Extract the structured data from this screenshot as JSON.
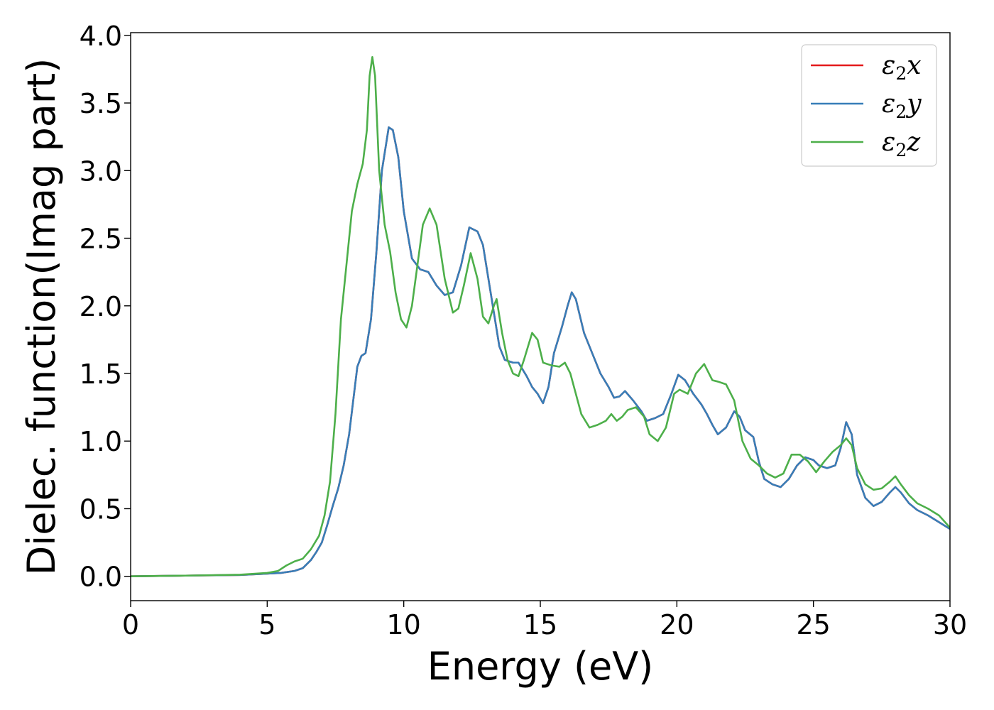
{
  "chart_data": {
    "type": "line",
    "title": "",
    "xlabel": "Energy (eV)",
    "ylabel": "Dielec. function(Imag part)",
    "xlim": [
      0,
      30
    ],
    "ylim": [
      -0.18,
      4.02
    ],
    "xticks": [
      0,
      5,
      10,
      15,
      20,
      25,
      30
    ],
    "xtick_labels": [
      "0",
      "5",
      "10",
      "15",
      "20",
      "25",
      "30"
    ],
    "yticks": [
      0.0,
      0.5,
      1.0,
      1.5,
      2.0,
      2.5,
      3.0,
      3.5,
      4.0
    ],
    "ytick_labels": [
      "0.0",
      "0.5",
      "1.0",
      "1.5",
      "2.0",
      "2.5",
      "3.0",
      "3.5",
      "4.0"
    ],
    "grid": false,
    "legend_position": "top-right",
    "colors": {
      "x": "#e41a1c",
      "y": "#377eb8",
      "z": "#4daf4a"
    },
    "series": [
      {
        "name": "ε2x",
        "legend_base": "ε",
        "legend_sub": "2",
        "legend_var": "x",
        "color": "#e41a1c",
        "points": [
          [
            0,
            0.0
          ],
          [
            2,
            0.005
          ],
          [
            4,
            0.01
          ],
          [
            5,
            0.02
          ],
          [
            5.5,
            0.025
          ],
          [
            6,
            0.04
          ],
          [
            6.3,
            0.06
          ],
          [
            6.6,
            0.12
          ],
          [
            6.8,
            0.18
          ],
          [
            7.0,
            0.25
          ],
          [
            7.2,
            0.38
          ],
          [
            7.4,
            0.52
          ],
          [
            7.6,
            0.65
          ],
          [
            7.8,
            0.82
          ],
          [
            8.0,
            1.05
          ],
          [
            8.15,
            1.3
          ],
          [
            8.3,
            1.55
          ],
          [
            8.45,
            1.63
          ],
          [
            8.6,
            1.65
          ],
          [
            8.8,
            1.9
          ],
          [
            9.0,
            2.4
          ],
          [
            9.2,
            3.0
          ],
          [
            9.45,
            3.32
          ],
          [
            9.6,
            3.3
          ],
          [
            9.8,
            3.1
          ],
          [
            10.0,
            2.7
          ],
          [
            10.3,
            2.35
          ],
          [
            10.6,
            2.27
          ],
          [
            10.9,
            2.25
          ],
          [
            11.2,
            2.15
          ],
          [
            11.5,
            2.08
          ],
          [
            11.8,
            2.1
          ],
          [
            12.1,
            2.3
          ],
          [
            12.4,
            2.58
          ],
          [
            12.7,
            2.55
          ],
          [
            12.9,
            2.45
          ],
          [
            13.1,
            2.2
          ],
          [
            13.3,
            1.95
          ],
          [
            13.5,
            1.7
          ],
          [
            13.7,
            1.6
          ],
          [
            14.0,
            1.58
          ],
          [
            14.2,
            1.58
          ],
          [
            14.5,
            1.48
          ],
          [
            14.7,
            1.4
          ],
          [
            14.9,
            1.35
          ],
          [
            15.1,
            1.28
          ],
          [
            15.3,
            1.4
          ],
          [
            15.5,
            1.65
          ],
          [
            15.8,
            1.85
          ],
          [
            16.0,
            2.0
          ],
          [
            16.15,
            2.1
          ],
          [
            16.3,
            2.05
          ],
          [
            16.6,
            1.8
          ],
          [
            16.9,
            1.65
          ],
          [
            17.2,
            1.5
          ],
          [
            17.5,
            1.4
          ],
          [
            17.7,
            1.32
          ],
          [
            17.9,
            1.33
          ],
          [
            18.1,
            1.37
          ],
          [
            18.4,
            1.3
          ],
          [
            18.7,
            1.22
          ],
          [
            18.9,
            1.15
          ],
          [
            19.2,
            1.17
          ],
          [
            19.5,
            1.2
          ],
          [
            19.8,
            1.35
          ],
          [
            20.05,
            1.49
          ],
          [
            20.3,
            1.45
          ],
          [
            20.6,
            1.35
          ],
          [
            20.9,
            1.27
          ],
          [
            21.1,
            1.2
          ],
          [
            21.3,
            1.12
          ],
          [
            21.5,
            1.05
          ],
          [
            21.8,
            1.1
          ],
          [
            22.1,
            1.22
          ],
          [
            22.3,
            1.18
          ],
          [
            22.5,
            1.08
          ],
          [
            22.8,
            1.03
          ],
          [
            23.0,
            0.85
          ],
          [
            23.2,
            0.72
          ],
          [
            23.5,
            0.68
          ],
          [
            23.8,
            0.66
          ],
          [
            24.1,
            0.72
          ],
          [
            24.4,
            0.82
          ],
          [
            24.7,
            0.88
          ],
          [
            25.0,
            0.86
          ],
          [
            25.2,
            0.82
          ],
          [
            25.5,
            0.8
          ],
          [
            25.8,
            0.82
          ],
          [
            26.0,
            0.95
          ],
          [
            26.2,
            1.14
          ],
          [
            26.4,
            1.05
          ],
          [
            26.6,
            0.75
          ],
          [
            26.9,
            0.58
          ],
          [
            27.2,
            0.52
          ],
          [
            27.5,
            0.55
          ],
          [
            27.8,
            0.62
          ],
          [
            28.0,
            0.66
          ],
          [
            28.2,
            0.62
          ],
          [
            28.5,
            0.54
          ],
          [
            28.8,
            0.49
          ],
          [
            29.2,
            0.45
          ],
          [
            29.6,
            0.4
          ],
          [
            30.0,
            0.35
          ]
        ]
      },
      {
        "name": "ε2y",
        "legend_base": "ε",
        "legend_sub": "2",
        "legend_var": "y",
        "color": "#377eb8",
        "points": [
          [
            0,
            0.0
          ],
          [
            2,
            0.005
          ],
          [
            4,
            0.01
          ],
          [
            5,
            0.02
          ],
          [
            5.5,
            0.025
          ],
          [
            6,
            0.04
          ],
          [
            6.3,
            0.06
          ],
          [
            6.6,
            0.12
          ],
          [
            6.8,
            0.18
          ],
          [
            7.0,
            0.25
          ],
          [
            7.2,
            0.38
          ],
          [
            7.4,
            0.52
          ],
          [
            7.6,
            0.65
          ],
          [
            7.8,
            0.82
          ],
          [
            8.0,
            1.05
          ],
          [
            8.15,
            1.3
          ],
          [
            8.3,
            1.55
          ],
          [
            8.45,
            1.63
          ],
          [
            8.6,
            1.65
          ],
          [
            8.8,
            1.9
          ],
          [
            9.0,
            2.4
          ],
          [
            9.2,
            3.0
          ],
          [
            9.45,
            3.32
          ],
          [
            9.6,
            3.3
          ],
          [
            9.8,
            3.1
          ],
          [
            10.0,
            2.7
          ],
          [
            10.3,
            2.35
          ],
          [
            10.6,
            2.27
          ],
          [
            10.9,
            2.25
          ],
          [
            11.2,
            2.15
          ],
          [
            11.5,
            2.08
          ],
          [
            11.8,
            2.1
          ],
          [
            12.1,
            2.3
          ],
          [
            12.4,
            2.58
          ],
          [
            12.7,
            2.55
          ],
          [
            12.9,
            2.45
          ],
          [
            13.1,
            2.2
          ],
          [
            13.3,
            1.95
          ],
          [
            13.5,
            1.7
          ],
          [
            13.7,
            1.6
          ],
          [
            14.0,
            1.58
          ],
          [
            14.2,
            1.58
          ],
          [
            14.5,
            1.48
          ],
          [
            14.7,
            1.4
          ],
          [
            14.9,
            1.35
          ],
          [
            15.1,
            1.28
          ],
          [
            15.3,
            1.4
          ],
          [
            15.5,
            1.65
          ],
          [
            15.8,
            1.85
          ],
          [
            16.0,
            2.0
          ],
          [
            16.15,
            2.1
          ],
          [
            16.3,
            2.05
          ],
          [
            16.6,
            1.8
          ],
          [
            16.9,
            1.65
          ],
          [
            17.2,
            1.5
          ],
          [
            17.5,
            1.4
          ],
          [
            17.7,
            1.32
          ],
          [
            17.9,
            1.33
          ],
          [
            18.1,
            1.37
          ],
          [
            18.4,
            1.3
          ],
          [
            18.7,
            1.22
          ],
          [
            18.9,
            1.15
          ],
          [
            19.2,
            1.17
          ],
          [
            19.5,
            1.2
          ],
          [
            19.8,
            1.35
          ],
          [
            20.05,
            1.49
          ],
          [
            20.3,
            1.45
          ],
          [
            20.6,
            1.35
          ],
          [
            20.9,
            1.27
          ],
          [
            21.1,
            1.2
          ],
          [
            21.3,
            1.12
          ],
          [
            21.5,
            1.05
          ],
          [
            21.8,
            1.1
          ],
          [
            22.1,
            1.22
          ],
          [
            22.3,
            1.18
          ],
          [
            22.5,
            1.08
          ],
          [
            22.8,
            1.03
          ],
          [
            23.0,
            0.85
          ],
          [
            23.2,
            0.72
          ],
          [
            23.5,
            0.68
          ],
          [
            23.8,
            0.66
          ],
          [
            24.1,
            0.72
          ],
          [
            24.4,
            0.82
          ],
          [
            24.7,
            0.88
          ],
          [
            25.0,
            0.86
          ],
          [
            25.2,
            0.82
          ],
          [
            25.5,
            0.8
          ],
          [
            25.8,
            0.82
          ],
          [
            26.0,
            0.95
          ],
          [
            26.2,
            1.14
          ],
          [
            26.4,
            1.05
          ],
          [
            26.6,
            0.75
          ],
          [
            26.9,
            0.58
          ],
          [
            27.2,
            0.52
          ],
          [
            27.5,
            0.55
          ],
          [
            27.8,
            0.62
          ],
          [
            28.0,
            0.66
          ],
          [
            28.2,
            0.62
          ],
          [
            28.5,
            0.54
          ],
          [
            28.8,
            0.49
          ],
          [
            29.2,
            0.45
          ],
          [
            29.6,
            0.4
          ],
          [
            30.0,
            0.35
          ]
        ]
      },
      {
        "name": "ε2z",
        "legend_base": "ε",
        "legend_sub": "2",
        "legend_var": "z",
        "color": "#4daf4a",
        "points": [
          [
            0,
            0.0
          ],
          [
            2,
            0.005
          ],
          [
            4,
            0.012
          ],
          [
            5,
            0.025
          ],
          [
            5.4,
            0.04
          ],
          [
            5.7,
            0.08
          ],
          [
            6.0,
            0.11
          ],
          [
            6.3,
            0.13
          ],
          [
            6.6,
            0.2
          ],
          [
            6.9,
            0.3
          ],
          [
            7.1,
            0.45
          ],
          [
            7.3,
            0.7
          ],
          [
            7.5,
            1.2
          ],
          [
            7.7,
            1.9
          ],
          [
            7.9,
            2.3
          ],
          [
            8.1,
            2.7
          ],
          [
            8.3,
            2.9
          ],
          [
            8.5,
            3.05
          ],
          [
            8.65,
            3.3
          ],
          [
            8.75,
            3.7
          ],
          [
            8.85,
            3.84
          ],
          [
            8.95,
            3.7
          ],
          [
            9.1,
            3.0
          ],
          [
            9.3,
            2.6
          ],
          [
            9.5,
            2.4
          ],
          [
            9.7,
            2.1
          ],
          [
            9.9,
            1.9
          ],
          [
            10.1,
            1.84
          ],
          [
            10.3,
            2.0
          ],
          [
            10.5,
            2.3
          ],
          [
            10.7,
            2.6
          ],
          [
            10.95,
            2.72
          ],
          [
            11.2,
            2.6
          ],
          [
            11.5,
            2.2
          ],
          [
            11.8,
            1.95
          ],
          [
            12.0,
            1.98
          ],
          [
            12.2,
            2.15
          ],
          [
            12.45,
            2.39
          ],
          [
            12.7,
            2.2
          ],
          [
            12.9,
            1.92
          ],
          [
            13.1,
            1.87
          ],
          [
            13.3,
            2.0
          ],
          [
            13.4,
            2.05
          ],
          [
            13.6,
            1.8
          ],
          [
            13.8,
            1.6
          ],
          [
            14.0,
            1.5
          ],
          [
            14.2,
            1.48
          ],
          [
            14.4,
            1.6
          ],
          [
            14.7,
            1.8
          ],
          [
            14.9,
            1.75
          ],
          [
            15.1,
            1.58
          ],
          [
            15.4,
            1.56
          ],
          [
            15.7,
            1.55
          ],
          [
            15.9,
            1.58
          ],
          [
            16.1,
            1.5
          ],
          [
            16.3,
            1.35
          ],
          [
            16.5,
            1.2
          ],
          [
            16.8,
            1.1
          ],
          [
            17.1,
            1.12
          ],
          [
            17.4,
            1.15
          ],
          [
            17.6,
            1.2
          ],
          [
            17.8,
            1.15
          ],
          [
            18.0,
            1.18
          ],
          [
            18.2,
            1.23
          ],
          [
            18.5,
            1.25
          ],
          [
            18.8,
            1.18
          ],
          [
            19.0,
            1.05
          ],
          [
            19.3,
            1.0
          ],
          [
            19.6,
            1.1
          ],
          [
            19.9,
            1.35
          ],
          [
            20.1,
            1.38
          ],
          [
            20.4,
            1.35
          ],
          [
            20.7,
            1.5
          ],
          [
            21.0,
            1.57
          ],
          [
            21.3,
            1.45
          ],
          [
            21.5,
            1.44
          ],
          [
            21.8,
            1.42
          ],
          [
            22.1,
            1.3
          ],
          [
            22.4,
            1.0
          ],
          [
            22.7,
            0.87
          ],
          [
            23.0,
            0.82
          ],
          [
            23.3,
            0.76
          ],
          [
            23.6,
            0.73
          ],
          [
            23.9,
            0.76
          ],
          [
            24.2,
            0.9
          ],
          [
            24.5,
            0.9
          ],
          [
            24.8,
            0.85
          ],
          [
            25.1,
            0.77
          ],
          [
            25.4,
            0.85
          ],
          [
            25.7,
            0.92
          ],
          [
            26.0,
            0.97
          ],
          [
            26.2,
            1.02
          ],
          [
            26.4,
            0.97
          ],
          [
            26.6,
            0.8
          ],
          [
            26.9,
            0.68
          ],
          [
            27.2,
            0.64
          ],
          [
            27.5,
            0.65
          ],
          [
            27.8,
            0.7
          ],
          [
            28.0,
            0.74
          ],
          [
            28.2,
            0.68
          ],
          [
            28.5,
            0.6
          ],
          [
            28.8,
            0.54
          ],
          [
            29.2,
            0.5
          ],
          [
            29.6,
            0.45
          ],
          [
            30.0,
            0.36
          ]
        ]
      }
    ]
  }
}
